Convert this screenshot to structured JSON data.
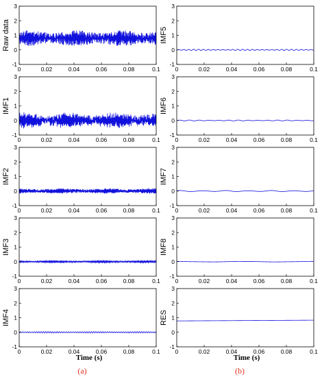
{
  "chart_data": [
    {
      "type": "line",
      "ylabel": "Raw data",
      "series": [
        {
          "mean": 0.8,
          "amplitude": 0.38,
          "cycles": 600,
          "noise": 0.55
        }
      ]
    },
    {
      "type": "line",
      "ylabel": "IMF1",
      "series": [
        {
          "mean": 0.0,
          "amplitude": 0.35,
          "cycles": 700,
          "noise": 0.6
        }
      ]
    },
    {
      "type": "line",
      "ylabel": "IMF2",
      "series": [
        {
          "mean": 0.0,
          "amplitude": 0.14,
          "cycles": 300,
          "noise": 0.45
        }
      ]
    },
    {
      "type": "line",
      "ylabel": "IMF3",
      "series": [
        {
          "mean": 0.0,
          "amplitude": 0.07,
          "cycles": 150,
          "noise": 0.3
        }
      ]
    },
    {
      "type": "line",
      "ylabel": "IMF4",
      "series": [
        {
          "mean": 0.0,
          "amplitude": 0.05,
          "cycles": 60,
          "noise": 0.2
        }
      ]
    },
    {
      "type": "line",
      "ylabel": "IMF5",
      "series": [
        {
          "mean": 0.0,
          "amplitude": 0.04,
          "cycles": 28,
          "noise": 0.1
        }
      ]
    },
    {
      "type": "line",
      "ylabel": "IMF6",
      "series": [
        {
          "mean": 0.0,
          "amplitude": 0.03,
          "cycles": 14,
          "noise": 0.05
        }
      ]
    },
    {
      "type": "line",
      "ylabel": "IMF7",
      "series": [
        {
          "mean": 0.0,
          "amplitude": 0.04,
          "cycles": 6,
          "noise": 0.0
        }
      ]
    },
    {
      "type": "line",
      "ylabel": "IMF8",
      "series": [
        {
          "mean": 0.0,
          "amplitude": 0.02,
          "cycles": 2,
          "noise": 0.0
        }
      ]
    },
    {
      "type": "line",
      "ylabel": "RES",
      "series": [
        {
          "mean": 0.78,
          "slope": 0.5,
          "amplitude": 0.0,
          "cycles": 0,
          "noise": 0.0
        }
      ]
    }
  ],
  "shared": {
    "xlim": [
      0,
      0.1
    ],
    "ylim": [
      -1,
      3
    ],
    "xticks": [
      "0",
      "0.02",
      "0.04",
      "0.06",
      "0.08",
      "0.1"
    ],
    "xtick_values": [
      0,
      0.02,
      0.04,
      0.06,
      0.08,
      0.1
    ],
    "yticks": [
      "-1",
      "0",
      "1",
      "2",
      "3"
    ],
    "ytick_values": [
      -1,
      0,
      1,
      2,
      3
    ],
    "line_color": "#1111dd",
    "grid": false
  },
  "xlabels": {
    "left": "Time (s)",
    "right": "Time (s)"
  },
  "captions": {
    "left": "(a)",
    "right": "(b)"
  }
}
